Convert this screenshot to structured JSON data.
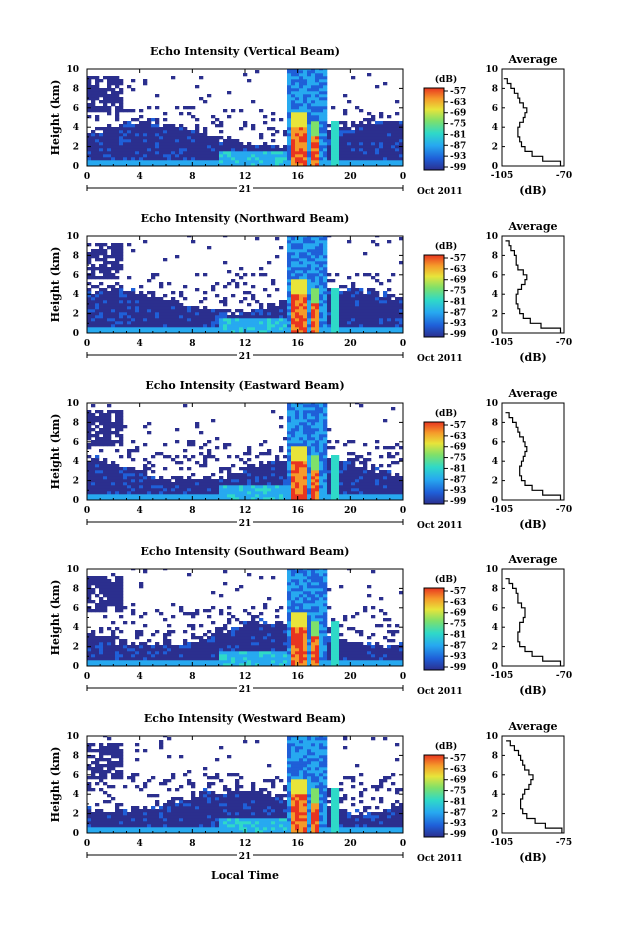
{
  "figure": {
    "x_axis_label": "Local Time",
    "date_label": "Oct 2011",
    "day_label": "21",
    "colorbar_unit": "(dB)",
    "colorbar_ticks": [
      "-57",
      "-63",
      "-69",
      "-75",
      "-81",
      "-87",
      "-93",
      "-99"
    ],
    "avg_title": "Average",
    "avg_xlabel": "(dB)",
    "panel_colors": [
      "#2b2f8e",
      "#1f5fd8",
      "#27a9f0",
      "#2fd9c8",
      "#7fe06a",
      "#e8e43a",
      "#f59a2a",
      "#e83520"
    ]
  },
  "chart_data": [
    {
      "type": "heatmap",
      "title": "Echo Intensity (Vertical Beam)",
      "ylabel": "Height (km)",
      "xlabel": "Local Time",
      "x_ticks": [
        "0",
        "4",
        "8",
        "12",
        "16",
        "20",
        "0"
      ],
      "y_ticks": [
        "0",
        "2",
        "4",
        "6",
        "8",
        "10"
      ],
      "xlim": [
        0,
        24
      ],
      "ylim": [
        0,
        10
      ],
      "colorbar": {
        "label": "(dB)",
        "ticks": [
          -57,
          -63,
          -69,
          -75,
          -81,
          -87,
          -93,
          -99
        ]
      },
      "average_profile": {
        "title": "Average",
        "xlabel": "(dB)",
        "x_ticks": [
          "-105",
          "-70"
        ],
        "xlim": [
          -105,
          -70
        ],
        "ylim": [
          0,
          10
        ],
        "height_km": [
          0,
          0.5,
          1,
          1.5,
          2,
          2.5,
          3,
          3.5,
          4,
          4.5,
          5,
          5.5,
          6,
          6.5,
          7,
          7.5,
          8,
          8.5,
          9
        ],
        "values_db": [
          -72,
          -82,
          -88,
          -92,
          -94,
          -95,
          -96,
          -96,
          -95,
          -93,
          -92,
          -91,
          -93,
          -95,
          -96,
          -98,
          -100,
          -102,
          -104
        ]
      }
    },
    {
      "type": "heatmap",
      "title": "Echo Intensity (Northward Beam)",
      "ylabel": "Height (km)",
      "xlabel": "Local Time",
      "x_ticks": [
        "0",
        "4",
        "8",
        "12",
        "16",
        "20",
        "0"
      ],
      "y_ticks": [
        "0",
        "2",
        "4",
        "6",
        "8",
        "10"
      ],
      "xlim": [
        0,
        24
      ],
      "ylim": [
        0,
        10
      ],
      "colorbar": {
        "label": "(dB)",
        "ticks": [
          -57,
          -63,
          -69,
          -75,
          -81,
          -87,
          -93,
          -99
        ]
      },
      "average_profile": {
        "title": "Average",
        "xlabel": "(dB)",
        "x_ticks": [
          "-105",
          "-70"
        ],
        "xlim": [
          -105,
          -70
        ],
        "ylim": [
          0,
          10
        ],
        "height_km": [
          0,
          0.5,
          1,
          1.5,
          2,
          2.5,
          3,
          3.5,
          4,
          4.5,
          5,
          5.5,
          6,
          6.5,
          7,
          7.5,
          8,
          8.5,
          9,
          9.5
        ],
        "values_db": [
          -72,
          -83,
          -89,
          -93,
          -95,
          -96,
          -97,
          -97,
          -96,
          -94,
          -92,
          -91,
          -93,
          -96,
          -97,
          -97,
          -98,
          -100,
          -101,
          -103
        ]
      }
    },
    {
      "type": "heatmap",
      "title": "Echo Intensity (Eastward Beam)",
      "ylabel": "Height (km)",
      "xlabel": "Local Time",
      "x_ticks": [
        "0",
        "4",
        "8",
        "12",
        "16",
        "20",
        "0"
      ],
      "y_ticks": [
        "0",
        "2",
        "4",
        "6",
        "8",
        "10"
      ],
      "xlim": [
        0,
        24
      ],
      "ylim": [
        0,
        10
      ],
      "colorbar": {
        "label": "(dB)",
        "ticks": [
          -57,
          -63,
          -69,
          -75,
          -81,
          -87,
          -93,
          -99
        ]
      },
      "average_profile": {
        "title": "Average",
        "xlabel": "(dB)",
        "x_ticks": [
          "-105",
          "-70"
        ],
        "xlim": [
          -105,
          -70
        ],
        "ylim": [
          0,
          10
        ],
        "height_km": [
          0,
          0.5,
          1,
          1.5,
          2,
          2.5,
          3,
          3.5,
          4,
          4.5,
          5,
          5.5,
          6,
          6.5,
          7,
          7.5,
          8,
          8.5,
          9
        ],
        "values_db": [
          -72,
          -82,
          -88,
          -92,
          -94,
          -95,
          -95,
          -94,
          -93,
          -92,
          -91,
          -92,
          -93,
          -95,
          -96,
          -97,
          -99,
          -101,
          -103
        ]
      }
    },
    {
      "type": "heatmap",
      "title": "Echo Intensity (Southward Beam)",
      "ylabel": "Height (km)",
      "xlabel": "Local Time",
      "x_ticks": [
        "0",
        "4",
        "8",
        "12",
        "16",
        "20",
        "0"
      ],
      "y_ticks": [
        "0",
        "2",
        "4",
        "6",
        "8",
        "10"
      ],
      "xlim": [
        0,
        24
      ],
      "ylim": [
        0,
        10
      ],
      "colorbar": {
        "label": "(dB)",
        "ticks": [
          -57,
          -63,
          -69,
          -75,
          -81,
          -87,
          -93,
          -99
        ]
      },
      "average_profile": {
        "title": "Average",
        "xlabel": "(dB)",
        "x_ticks": [
          "-105",
          "-70"
        ],
        "xlim": [
          -105,
          -70
        ],
        "ylim": [
          0,
          10
        ],
        "height_km": [
          0,
          0.5,
          1,
          1.5,
          2,
          2.5,
          3,
          3.5,
          4,
          4.5,
          5,
          5.5,
          6,
          6.5,
          7,
          7.5,
          8,
          8.5,
          9
        ],
        "values_db": [
          -72,
          -82,
          -88,
          -92,
          -95,
          -96,
          -96,
          -95,
          -95,
          -93,
          -92,
          -92,
          -94,
          -96,
          -96,
          -97,
          -99,
          -101,
          -103
        ]
      }
    },
    {
      "type": "heatmap",
      "title": "Echo Intensity (Westward Beam)",
      "ylabel": "Height (km)",
      "xlabel": "Local Time",
      "x_ticks": [
        "0",
        "4",
        "8",
        "12",
        "16",
        "20",
        "0"
      ],
      "y_ticks": [
        "0",
        "2",
        "4",
        "6",
        "8",
        "10"
      ],
      "xlim": [
        0,
        24
      ],
      "ylim": [
        0,
        10
      ],
      "colorbar": {
        "label": "(dB)",
        "ticks": [
          -57,
          -63,
          -69,
          -75,
          -81,
          -87,
          -93,
          -99
        ]
      },
      "average_profile": {
        "title": "Average",
        "xlabel": "(dB)",
        "x_ticks": [
          "-105",
          "-75"
        ],
        "xlim": [
          -105,
          -75
        ],
        "ylim": [
          0,
          10
        ],
        "height_km": [
          0,
          0.5,
          1,
          1.5,
          2,
          2.5,
          3,
          3.5,
          4,
          4.5,
          5,
          5.5,
          6,
          6.5,
          7,
          7.5,
          8,
          8.5,
          9,
          9.5
        ],
        "values_db": [
          -76,
          -84,
          -89,
          -93,
          -95,
          -96,
          -96,
          -95,
          -94,
          -92,
          -91,
          -90,
          -92,
          -94,
          -95,
          -96,
          -97,
          -99,
          -101,
          -103
        ]
      }
    }
  ]
}
